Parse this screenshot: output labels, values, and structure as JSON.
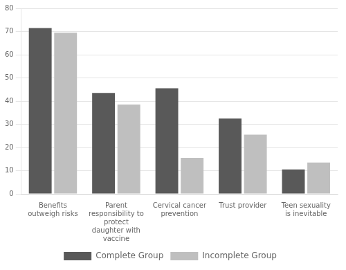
{
  "chart_data": {
    "type": "bar",
    "categories": [
      "Benefits\noutweigh risks",
      "Parent\nresponsibility to\nprotect\ndaughter with\nvaccine",
      "Cervical cancer\nprevention",
      "Trust provider",
      "Teen sexuality\nis inevitable"
    ],
    "series": [
      {
        "name": "Complete Group",
        "color": "#595959",
        "values": [
          71.5,
          43.5,
          45.5,
          32.5,
          10.5
        ]
      },
      {
        "name": "Incomplete Group",
        "color": "#bfbfbf",
        "values": [
          69.5,
          38.5,
          15.5,
          25.5,
          13.5
        ]
      }
    ],
    "ylim": [
      0,
      80
    ],
    "yticks": [
      0,
      10,
      20,
      30,
      40,
      50,
      60,
      70,
      80
    ],
    "grid": true,
    "legend": "bottom"
  }
}
